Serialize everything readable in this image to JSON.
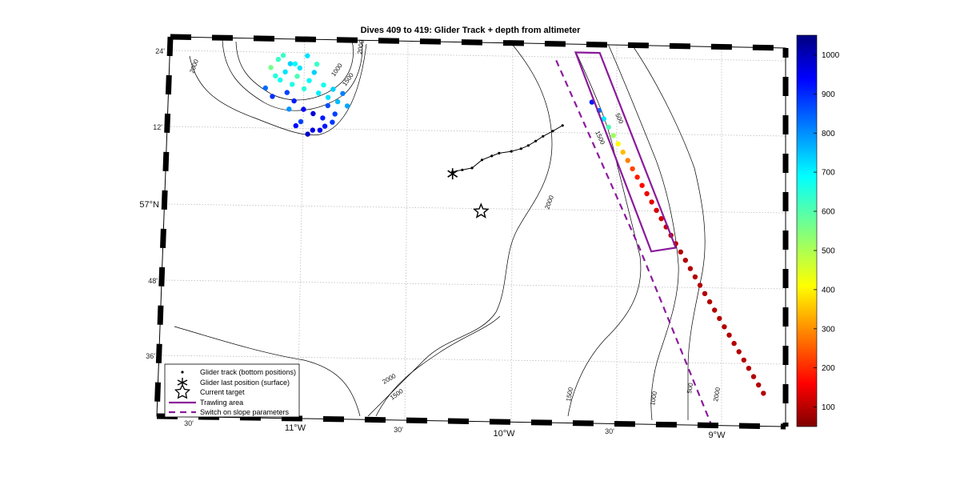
{
  "chart_data": {
    "type": "scatter",
    "title": "Dives 409 to 419: Glider Track + depth from altimeter",
    "x_ticks_major": [
      "11°W",
      "10°W",
      "9°W"
    ],
    "x_ticks_minor": [
      "30'",
      "30'",
      "30'"
    ],
    "y_ticks_major": [
      "57°N"
    ],
    "y_ticks_minor": [
      "24'",
      "12'",
      "48'",
      "36'"
    ],
    "xlim": [
      -11.3,
      -8.75
    ],
    "ylim": [
      56.5,
      57.42
    ],
    "colorbar": {
      "ticks": [
        100,
        200,
        300,
        400,
        500,
        600,
        700,
        800,
        900,
        1000
      ],
      "range": [
        50,
        1050
      ],
      "colormap": "jet"
    },
    "contour_labels": [
      "2000",
      "1500",
      "1000",
      "2000",
      "2000",
      "1500",
      "2000",
      "1500",
      "1500",
      "500",
      "1000",
      "500",
      "2000"
    ],
    "legend": {
      "placement": "lower-left",
      "entries": [
        "Glider track (bottom positions)",
        "Glider last position (surface)",
        "Current target",
        "Trawling area",
        "Switch on slope parameters"
      ]
    },
    "glider_track": {
      "x": [
        -10.12,
        -10.08,
        -10.04,
        -10.0,
        -9.96,
        -9.93,
        -9.88,
        -9.84,
        -9.81,
        -9.78,
        -9.75,
        -9.71,
        -9.67
      ],
      "y": [
        57.105,
        57.11,
        57.115,
        57.135,
        57.145,
        57.152,
        57.157,
        57.164,
        57.172,
        57.183,
        57.195,
        57.208,
        57.222
      ]
    },
    "last_position": {
      "x": -10.12,
      "y": 57.1
    },
    "current_target": {
      "x": -10.0,
      "y": 57.01
    },
    "trawling_area": {
      "x": [
        -9.62,
        -9.52,
        -9.2,
        -9.3,
        -9.62
      ],
      "y": [
        57.4,
        57.4,
        56.93,
        56.92,
        57.4
      ]
    },
    "slope_switch_line": {
      "x": [
        -9.7,
        -9.35,
        -9.05
      ],
      "y": [
        57.38,
        56.93,
        56.5
      ]
    },
    "series": [
      {
        "x": [
          -10.88,
          -10.85,
          -10.84,
          -10.82,
          -10.8,
          -10.79,
          -10.77,
          -10.76,
          -10.74,
          -10.72,
          -10.7,
          -10.68,
          -10.66,
          -10.64,
          -10.62,
          -10.6,
          -10.58,
          -10.56,
          -10.9,
          -10.87,
          -10.81,
          -10.78,
          -10.74,
          -10.7,
          -10.66,
          -10.62,
          -10.86,
          -10.8,
          -10.75,
          -10.7,
          -10.65,
          -10.61,
          -10.83,
          -10.78,
          -10.73,
          -10.69,
          -10.64,
          -10.77,
          -10.72,
          -10.67
        ],
        "y": [
          57.35,
          57.37,
          57.32,
          57.34,
          57.36,
          57.31,
          57.33,
          57.35,
          57.3,
          57.32,
          57.34,
          57.29,
          57.31,
          57.28,
          57.3,
          57.27,
          57.29,
          57.26,
          57.3,
          57.28,
          57.29,
          57.27,
          57.25,
          57.24,
          57.23,
          57.22,
          57.33,
          57.25,
          57.22,
          57.2,
          57.21,
          57.24,
          57.38,
          57.36,
          57.38,
          57.36,
          57.26,
          57.21,
          57.19,
          57.2
        ],
        "depth": [
          560,
          620,
          660,
          700,
          720,
          650,
          600,
          700,
          640,
          680,
          720,
          690,
          660,
          700,
          720,
          740,
          800,
          760,
          820,
          880,
          860,
          900,
          930,
          960,
          900,
          870,
          640,
          780,
          860,
          950,
          900,
          860,
          620,
          680,
          700,
          620,
          850,
          920,
          980,
          940
        ]
      },
      {
        "x": [
          -9.55,
          -9.52,
          -9.5,
          -9.48,
          -9.46,
          -9.44,
          -9.42,
          -9.4,
          -9.38,
          -9.36,
          -9.34,
          -9.32,
          -9.3,
          -9.28,
          -9.26,
          -9.24,
          -9.22,
          -9.2,
          -9.18,
          -9.16,
          -9.14,
          -9.12,
          -9.1,
          -9.08,
          -9.06,
          -9.04,
          -9.02,
          -9.0,
          -8.98,
          -8.96,
          -8.94,
          -8.92,
          -8.9,
          -8.88,
          -8.86,
          -8.84
        ],
        "y": [
          57.28,
          57.26,
          57.24,
          57.22,
          57.2,
          57.18,
          57.16,
          57.14,
          57.12,
          57.1,
          57.08,
          57.06,
          57.04,
          57.02,
          57.0,
          56.98,
          56.96,
          56.94,
          56.92,
          56.9,
          56.88,
          56.86,
          56.84,
          56.82,
          56.8,
          56.78,
          56.76,
          56.74,
          56.72,
          56.7,
          56.68,
          56.66,
          56.64,
          56.62,
          56.6,
          56.58
        ],
        "depth": [
          900,
          820,
          700,
          600,
          520,
          420,
          360,
          300,
          240,
          200,
          180,
          160,
          150,
          140,
          130,
          120,
          110,
          110,
          100,
          100,
          100,
          100,
          100,
          100,
          100,
          100,
          100,
          100,
          100,
          100,
          100,
          100,
          100,
          100,
          100,
          100
        ]
      }
    ]
  }
}
